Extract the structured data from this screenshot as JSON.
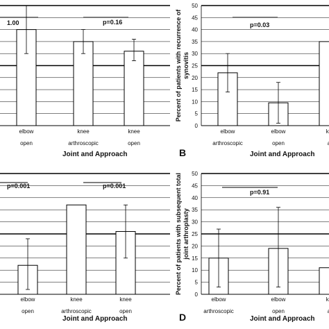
{
  "colors": {
    "axis": "#000000",
    "grid": "#000000",
    "bar_fill": "#ffffff",
    "bar_stroke": "#000000",
    "text": "#111111"
  },
  "panels": [
    {
      "id": "A",
      "letter": "",
      "ylabel": "",
      "xlabel": "Joint and Approach",
      "p_labels": [
        "1.00",
        "p=0.16"
      ]
    },
    {
      "id": "B",
      "letter": "B",
      "ylabel": "Percent of patients with recurrence of synovitis",
      "xlabel": "Joint and Approach",
      "p_labels": [
        "p=0.03"
      ]
    },
    {
      "id": "C",
      "letter": "",
      "ylabel": "",
      "xlabel": "Joint and Approach",
      "p_labels": [
        "p=0.001",
        "p=0.001"
      ]
    },
    {
      "id": "D",
      "letter": "D",
      "ylabel": "Percent of patients with subsequent total joint arthroplasty",
      "xlabel": "Joint and Approach",
      "p_labels": [
        "p=0.91"
      ]
    }
  ],
  "chart_data": [
    {
      "panel": "A",
      "type": "bar",
      "categories": [
        [
          "elbow",
          "open"
        ],
        [
          "knee",
          "arthroscopic"
        ],
        [
          "knee",
          "open"
        ]
      ],
      "values": [
        40,
        35,
        31
      ],
      "error_low": [
        30,
        30,
        27
      ],
      "error_high": [
        50,
        40,
        36
      ],
      "ylim": [
        0,
        50
      ],
      "grid": true,
      "xlabel": "Joint and Approach",
      "ylabel": "",
      "annotations": [
        "1.00",
        "p=0.16"
      ]
    },
    {
      "panel": "B",
      "type": "bar",
      "categories": [
        [
          "elbow",
          "arthroscopic"
        ],
        [
          "elbow",
          "open"
        ],
        [
          "kn",
          "a"
        ]
      ],
      "values": [
        22,
        9.5,
        35
      ],
      "error_low": [
        14,
        1,
        null
      ],
      "error_high": [
        30,
        18,
        null
      ],
      "ylim": [
        0,
        50
      ],
      "yticks": [
        0,
        5,
        10,
        15,
        20,
        25,
        30,
        35,
        40,
        45,
        50
      ],
      "grid": true,
      "xlabel": "Joint and Approach",
      "ylabel": "Percent of patients with recurrence of synovitis",
      "annotations": [
        "p=0.03"
      ]
    },
    {
      "panel": "C",
      "type": "bar",
      "categories": [
        [
          "elbow",
          "open"
        ],
        [
          "knee",
          "arthroscopic"
        ],
        [
          "knee",
          "open"
        ]
      ],
      "values": [
        12,
        37,
        26
      ],
      "error_low": [
        2,
        37,
        15
      ],
      "error_high": [
        23,
        37,
        37
      ],
      "ylim": [
        0,
        50
      ],
      "grid": true,
      "xlabel": "Joint and Approach",
      "ylabel": "",
      "annotations": [
        "p=0.001",
        "p=0.001"
      ]
    },
    {
      "panel": "D",
      "type": "bar",
      "categories": [
        [
          "elbow",
          "arthroscopic"
        ],
        [
          "elbow",
          "open"
        ],
        [
          "kn",
          "a"
        ]
      ],
      "values": [
        15,
        19,
        11
      ],
      "error_low": [
        3,
        3,
        null
      ],
      "error_high": [
        27,
        36,
        null
      ],
      "ylim": [
        0,
        50
      ],
      "yticks": [
        0,
        5,
        10,
        15,
        20,
        25,
        30,
        35,
        40,
        45,
        50
      ],
      "grid": true,
      "xlabel": "Joint and Approach",
      "ylabel": "Percent of patients with subsequent total joint arthroplasty",
      "annotations": [
        "p=0.91"
      ]
    }
  ]
}
